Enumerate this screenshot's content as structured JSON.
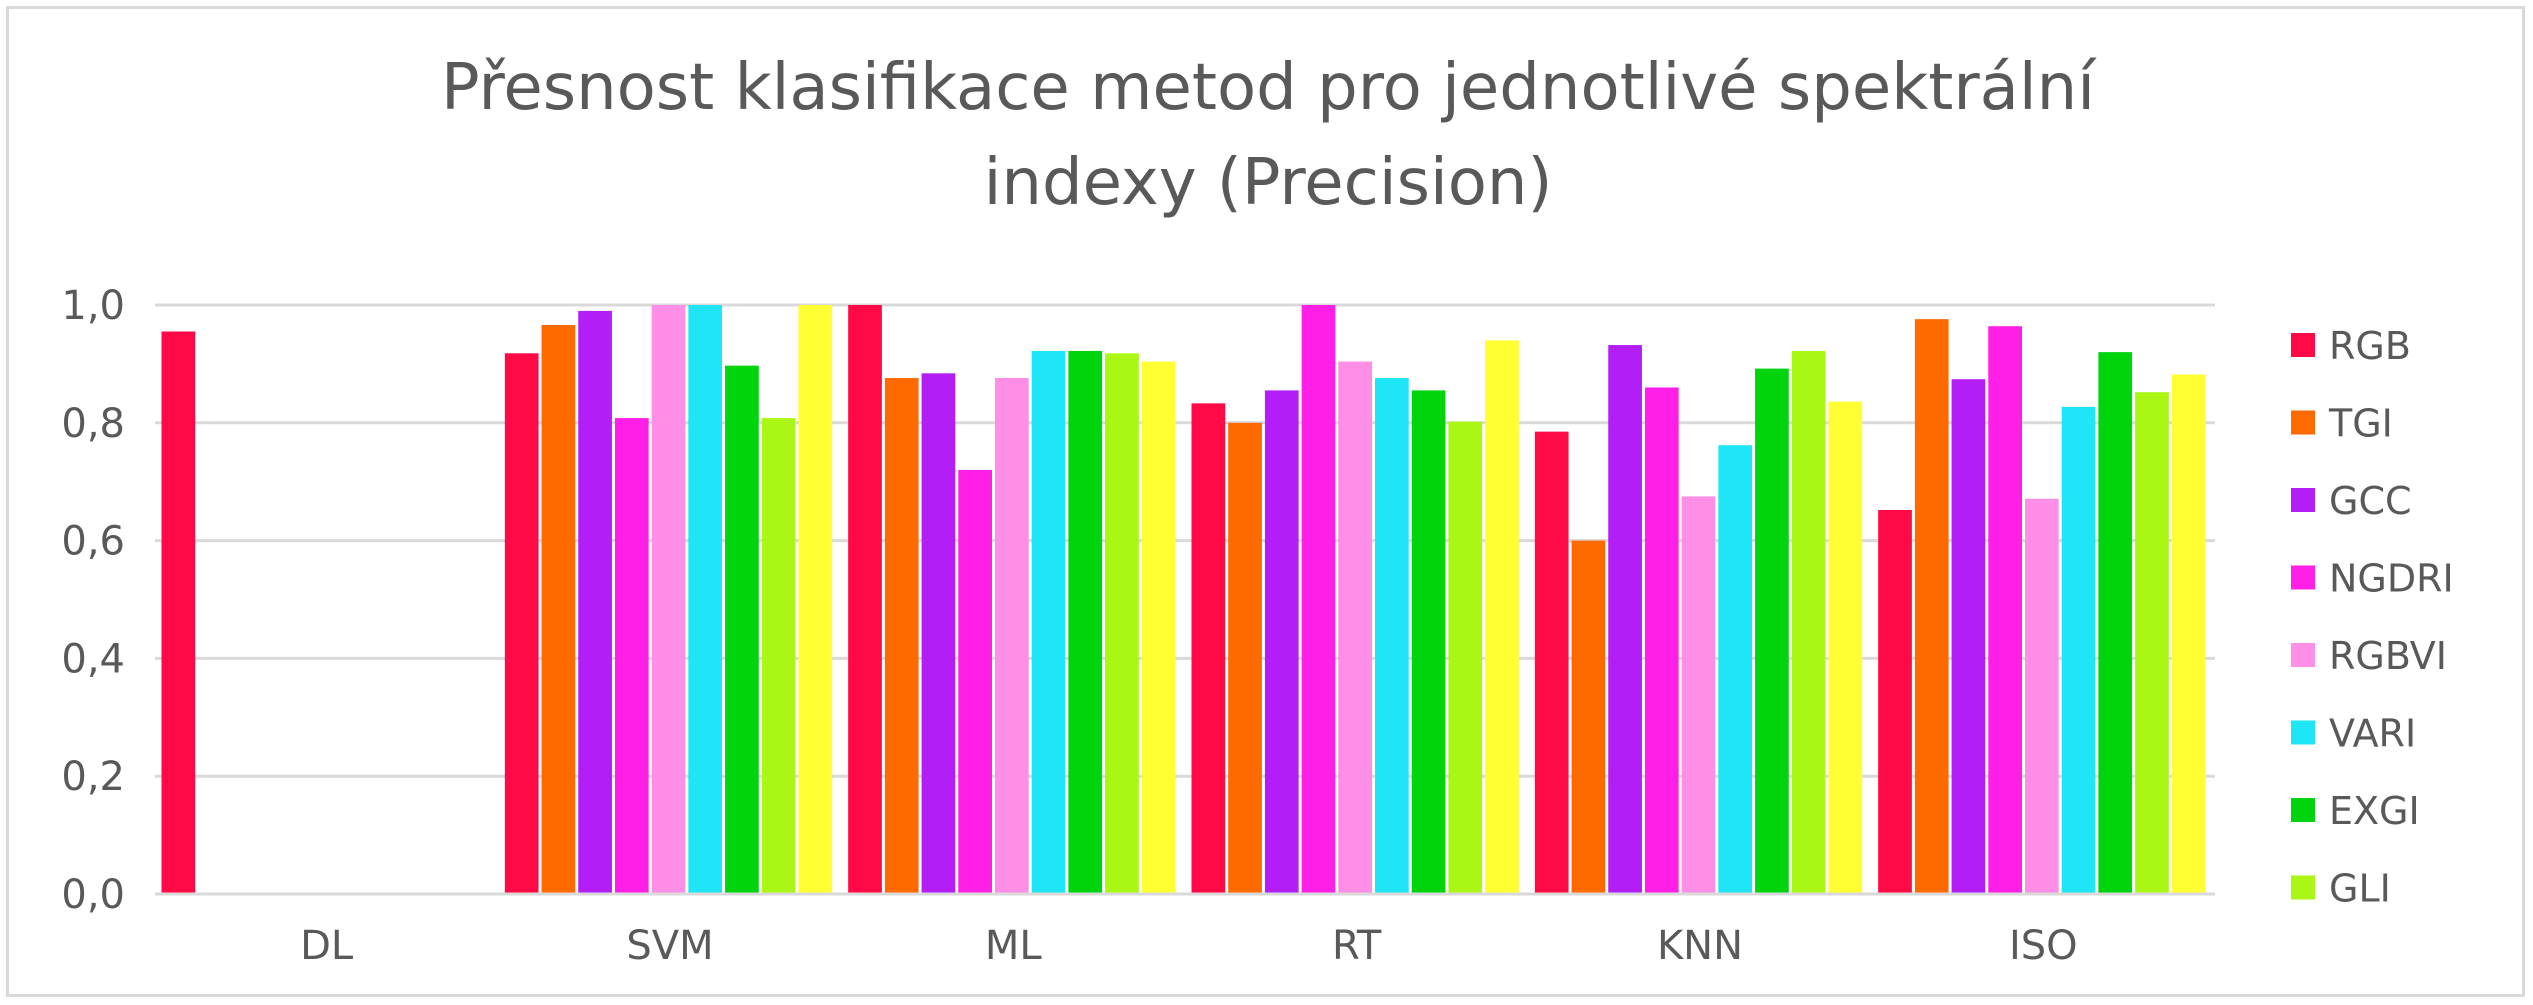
{
  "chart_data": {
    "type": "bar",
    "title": "Přesnost klasifikace metod pro jednotlivé spektrální indexy (Precision)",
    "title_lines": [
      "Přesnost klasifikace metod pro jednotlivé spektrální",
      "indexy (Precision)"
    ],
    "categories": [
      "DL",
      "SVM",
      "ML",
      "RT",
      "KNN",
      "ISO"
    ],
    "ylim": [
      0,
      1
    ],
    "yticks": [
      "0,0",
      "0,2",
      "0,4",
      "0,6",
      "0,8",
      "1,0"
    ],
    "grid": true,
    "legend_position": "right",
    "series": [
      {
        "name": "RGB",
        "color": "#ff0a47",
        "values": [
          0.955,
          0.918,
          1.0,
          0.833,
          0.785,
          0.652
        ]
      },
      {
        "name": "TGI",
        "color": "#ff6a00",
        "values": [
          null,
          0.966,
          0.876,
          0.8,
          0.6,
          0.976
        ]
      },
      {
        "name": "GCC",
        "color": "#b31ef7",
        "values": [
          null,
          0.99,
          0.884,
          0.855,
          0.932,
          0.874
        ]
      },
      {
        "name": "NGDRI",
        "color": "#ff1fe6",
        "values": [
          null,
          0.808,
          0.72,
          1.0,
          0.86,
          0.964
        ]
      },
      {
        "name": "RGBVI",
        "color": "#ff8fe6",
        "values": [
          null,
          1.0,
          0.876,
          0.904,
          0.675,
          0.671
        ]
      },
      {
        "name": "VARI",
        "color": "#1fe6f7",
        "values": [
          null,
          1.0,
          0.922,
          0.876,
          0.762,
          0.827
        ]
      },
      {
        "name": "EXGI",
        "color": "#00d40d",
        "values": [
          null,
          0.897,
          0.922,
          0.855,
          0.892,
          0.92
        ]
      },
      {
        "name": "GLI",
        "color": "#aaf716",
        "values": [
          null,
          0.808,
          0.918,
          0.802,
          0.922,
          0.852
        ]
      },
      {
        "name": "",
        "color": "#ffff33",
        "values": [
          null,
          1.0,
          0.904,
          0.94,
          0.836,
          0.882
        ]
      }
    ]
  }
}
